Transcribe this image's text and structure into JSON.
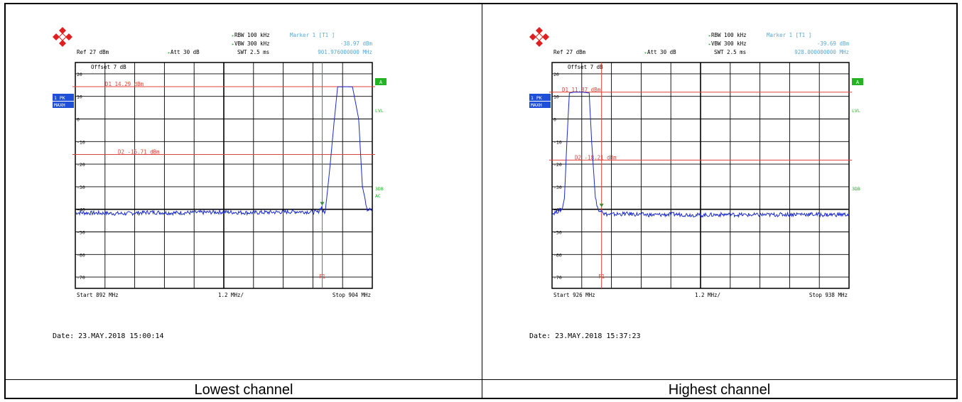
{
  "colors": {
    "trace": "#1a2bcc",
    "reference_line": "#e0433a",
    "marker_text": "#5aa9d6",
    "status_green": "#22b422",
    "tag_blue": "#1f4fd6",
    "grid": "#000000"
  },
  "captions": [
    "Lowest channel",
    "Highest channel"
  ],
  "panels": [
    {
      "logo_icon": "rohde-schwarz-logo-icon",
      "header": {
        "rbw": "RBW 100 kHz",
        "vbw": "VBW 300 kHz",
        "swt": "SWT 2.5 ms",
        "marker_title": "Marker 1 [T1 ]",
        "marker_level": "-38.97 dBm",
        "marker_freq": "901.976000000 MHz",
        "ref": "Ref  27 dBm",
        "att": "Att  30 dB"
      },
      "offset": "Offset  7 dB",
      "side_left": [
        "1 PK",
        "MAXH"
      ],
      "side_right": [
        "A",
        "LVL",
        "3DB",
        "AC"
      ],
      "d1_label": "D1  14.29 dBm",
      "d2_label": "D2  -15.71 dBm",
      "f1_label": "F1",
      "start": "Start  892 MHz",
      "span": "1.2 MHz/",
      "stop": "Stop  904 MHz",
      "date": "Date: 23.MAY.2018  15:00:14"
    },
    {
      "logo_icon": "rohde-schwarz-logo-icon",
      "header": {
        "rbw": "RBW 100 kHz",
        "vbw": "VBW 300 kHz",
        "swt": "SWT 2.5 ms",
        "marker_title": "Marker 1 [T1 ]",
        "marker_level": "-39.69 dBm",
        "marker_freq": "928.000000000 MHz",
        "ref": "Ref  27 dBm",
        "att": "Att  30 dB"
      },
      "offset": "Offset  7 dB",
      "side_left": [
        "1 PK",
        "MAXH"
      ],
      "side_right": [
        "A",
        "LVL",
        "3DB"
      ],
      "d1_label": "D1  11.87 dBm",
      "d2_label": "D2  -18.21 dBm",
      "f1_label": "F1",
      "start": "Start  926 MHz",
      "span": "1.2 MHz/",
      "stop": "Stop  938 MHz",
      "date": "Date: 23.MAY.2018  15:37:23"
    }
  ],
  "chart_data": [
    {
      "type": "line",
      "title": "",
      "x_range_mhz": [
        892,
        904
      ],
      "ylim": [
        -75,
        25
      ],
      "y_ticks": [
        20,
        10,
        0,
        -10,
        -20,
        -30,
        -40,
        -50,
        -60,
        -70
      ],
      "y_tick_labels": [
        "20",
        "10",
        "0",
        "-10",
        "-20",
        "-30",
        "-40",
        "-50",
        "-60",
        "-70"
      ],
      "reference_lines_dbm": {
        "D1": 14.29,
        "D2": -15.71
      },
      "marker_f1_mhz": 901.976,
      "marker_level_dbm": -38.97,
      "noise_floor_dbm": -41.5,
      "series": [
        {
          "x_mhz": [
            892,
            893,
            894,
            895,
            896,
            897,
            898,
            899,
            900,
            901,
            901.8,
            901.95,
            902.0,
            902.1,
            902.3,
            902.45,
            902.6,
            902.9,
            903.2,
            903.45,
            903.6,
            903.8,
            903.9,
            904
          ],
          "y_dbm": [
            -41.5,
            -41.7,
            -41.9,
            -41.3,
            -41.6,
            -41.4,
            -41.2,
            -41.5,
            -41.3,
            -41.0,
            -41.3,
            -39.0,
            -41.0,
            -41.3,
            -20,
            -2,
            14.2,
            14.3,
            14.2,
            0,
            -30,
            -40,
            -39.5,
            -41.5
          ]
        }
      ]
    },
    {
      "type": "line",
      "title": "",
      "x_range_mhz": [
        926,
        938
      ],
      "ylim": [
        -75,
        25
      ],
      "y_ticks": [
        20,
        10,
        0,
        -10,
        -20,
        -30,
        -40,
        -50,
        -60,
        -70
      ],
      "y_tick_labels": [
        "20",
        "10",
        "0",
        "-10",
        "-20",
        "-30",
        "-40",
        "-50",
        "-60",
        "-70"
      ],
      "reference_lines_dbm": {
        "D1": 11.87,
        "D2": -18.21
      },
      "marker_f1_mhz": 928.0,
      "marker_level_dbm": -39.69,
      "noise_floor_dbm": -42.5,
      "series": [
        {
          "x_mhz": [
            926,
            926.2,
            926.4,
            926.5,
            926.6,
            926.7,
            926.9,
            927.2,
            927.5,
            927.6,
            927.75,
            927.9,
            928.0,
            928.1,
            928.3,
            929,
            930,
            931,
            932,
            933,
            934,
            935,
            936,
            937,
            938
          ],
          "y_dbm": [
            -42.0,
            -41.0,
            -40.0,
            -35.0,
            -10,
            11.5,
            11.9,
            11.9,
            11.5,
            -10,
            -35,
            -41.5,
            -39.7,
            -42.0,
            -42.3,
            -42.0,
            -42.5,
            -42.2,
            -42.6,
            -42.3,
            -42.5,
            -42.4,
            -42.1,
            -42.4,
            -42.3
          ]
        }
      ]
    }
  ]
}
